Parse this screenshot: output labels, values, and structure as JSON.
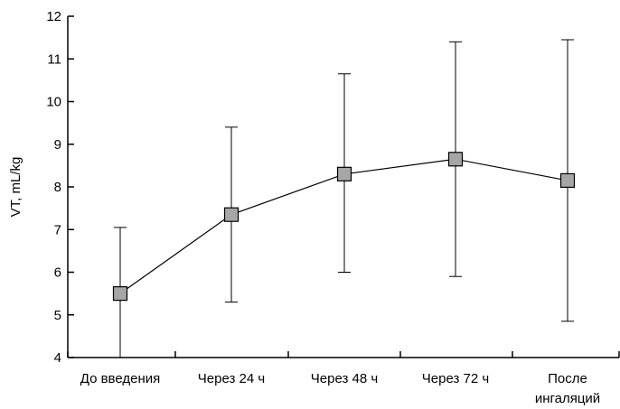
{
  "chart_data": {
    "type": "line",
    "ylabel": "VT, mL/kg",
    "xlabel": "",
    "ylim": [
      4,
      12
    ],
    "yticks": [
      4,
      5,
      6,
      7,
      8,
      9,
      10,
      11,
      12
    ],
    "categories": [
      [
        "До введения"
      ],
      [
        "Через 24 ч"
      ],
      [
        "Через 48 ч"
      ],
      [
        "Через 72 ч"
      ],
      [
        "После",
        "ингаляций"
      ]
    ],
    "series": [
      {
        "values": [
          5.5,
          7.35,
          8.3,
          8.65,
          8.15
        ],
        "err_low": [
          4.0,
          5.3,
          6.0,
          5.9,
          4.85
        ],
        "err_high": [
          7.05,
          9.4,
          10.65,
          11.4,
          11.45
        ],
        "marker": "square",
        "marker_color": "#a6a6a6",
        "line_color": "#000000"
      }
    ],
    "grid": false,
    "legend": "none"
  }
}
